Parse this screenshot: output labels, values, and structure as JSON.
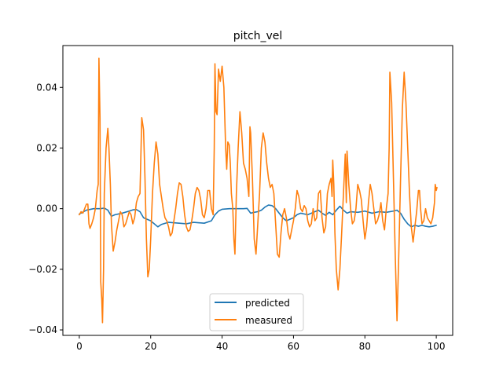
{
  "chart_data": {
    "type": "line",
    "title": "pitch_vel",
    "xlabel": "",
    "ylabel": "",
    "xlim": [
      -4.6,
      104.6
    ],
    "ylim": [
      -0.0418,
      0.0538
    ],
    "xticks": [
      0,
      20,
      40,
      60,
      80,
      100
    ],
    "yticks": [
      -0.04,
      -0.02,
      0.0,
      0.02,
      0.04
    ],
    "xtick_labels": [
      "0",
      "20",
      "40",
      "60",
      "80",
      "100"
    ],
    "ytick_labels": [
      "−0.04",
      "−0.02",
      "0.00",
      "0.02",
      "0.04"
    ],
    "grid": false,
    "legend": {
      "position": "lower center"
    },
    "series": [
      {
        "name": "predicted",
        "color": "#1f77b4",
        "points": [
          [
            0,
            -0.0018
          ],
          [
            2,
            -0.0005
          ],
          [
            4,
            0.0
          ],
          [
            6,
            0.0
          ],
          [
            7,
            0.0002
          ],
          [
            8,
            -0.0005
          ],
          [
            9,
            -0.0025
          ],
          [
            10,
            -0.002
          ],
          [
            12,
            -0.0015
          ],
          [
            14,
            -0.0008
          ],
          [
            15,
            -0.0004
          ],
          [
            16,
            -0.0003
          ],
          [
            17,
            -0.001
          ],
          [
            18,
            -0.003
          ],
          [
            20,
            -0.004
          ],
          [
            22,
            -0.006
          ],
          [
            23,
            -0.0052
          ],
          [
            25,
            -0.0045
          ],
          [
            28,
            -0.0048
          ],
          [
            30,
            -0.005
          ],
          [
            32,
            -0.0045
          ],
          [
            35,
            -0.0048
          ],
          [
            37,
            -0.004
          ],
          [
            38,
            -0.002
          ],
          [
            39,
            -0.0008
          ],
          [
            40,
            -0.0002
          ],
          [
            42,
            0.0
          ],
          [
            44,
            0.0
          ],
          [
            46,
            0.0
          ],
          [
            47,
            0.0001
          ],
          [
            48,
            -0.0015
          ],
          [
            49,
            -0.0012
          ],
          [
            50,
            -0.001
          ],
          [
            51,
            -0.0005
          ],
          [
            52,
            0.0005
          ],
          [
            53,
            0.0012
          ],
          [
            54,
            0.001
          ],
          [
            55,
            0.0
          ],
          [
            56,
            -0.0015
          ],
          [
            57,
            -0.003
          ],
          [
            58,
            -0.004
          ],
          [
            60,
            -0.003
          ],
          [
            61,
            -0.002
          ],
          [
            62,
            -0.0015
          ],
          [
            64,
            -0.002
          ],
          [
            65,
            -0.0015
          ],
          [
            66,
            -0.001
          ],
          [
            67,
            -0.0005
          ],
          [
            68,
            -0.0015
          ],
          [
            69,
            -0.0022
          ],
          [
            70,
            -0.0012
          ],
          [
            71,
            -0.002
          ],
          [
            72,
            -0.0005
          ],
          [
            73,
            0.0008
          ],
          [
            74,
            -0.0005
          ],
          [
            75,
            -0.0015
          ],
          [
            76,
            -0.001
          ],
          [
            78,
            -0.0012
          ],
          [
            80,
            -0.0008
          ],
          [
            82,
            -0.0015
          ],
          [
            84,
            -0.001
          ],
          [
            86,
            -0.0012
          ],
          [
            88,
            -0.0008
          ],
          [
            89,
            -0.0005
          ],
          [
            90,
            -0.0015
          ],
          [
            91,
            -0.0035
          ],
          [
            92,
            -0.005
          ],
          [
            93,
            -0.006
          ],
          [
            94,
            -0.0055
          ],
          [
            95,
            -0.0058
          ],
          [
            96,
            -0.0055
          ],
          [
            97,
            -0.0058
          ],
          [
            98,
            -0.006
          ],
          [
            99,
            -0.0058
          ],
          [
            100,
            -0.0055
          ]
        ]
      },
      {
        "name": "measured",
        "color": "#ff7f0e",
        "points": [
          [
            0,
            -0.002
          ],
          [
            0.5,
            -0.001
          ],
          [
            1,
            -0.0015
          ],
          [
            1.5,
            0.0
          ],
          [
            2,
            0.0015
          ],
          [
            2.4,
            0.0015
          ],
          [
            2.7,
            -0.005
          ],
          [
            3,
            -0.0065
          ],
          [
            3.5,
            -0.005
          ],
          [
            4,
            -0.003
          ],
          [
            4.5,
            0.0
          ],
          [
            5,
            0.006
          ],
          [
            5.3,
            0.008
          ],
          [
            5.5,
            0.0496
          ],
          [
            5.8,
            0.03
          ],
          [
            6,
            -0.024
          ],
          [
            6.3,
            -0.03
          ],
          [
            6.5,
            -0.0376
          ],
          [
            6.8,
            -0.02
          ],
          [
            7,
            0.005
          ],
          [
            7.5,
            0.02
          ],
          [
            8,
            0.0265
          ],
          [
            8.3,
            0.02
          ],
          [
            8.7,
            0.008
          ],
          [
            9,
            -0.005
          ],
          [
            9.5,
            -0.014
          ],
          [
            10,
            -0.011
          ],
          [
            10.5,
            -0.007
          ],
          [
            11,
            -0.004
          ],
          [
            11.5,
            -0.001
          ],
          [
            12,
            -0.002
          ],
          [
            12.5,
            -0.006
          ],
          [
            13,
            -0.005
          ],
          [
            13.5,
            -0.003
          ],
          [
            14,
            -0.001
          ],
          [
            14.5,
            -0.002
          ],
          [
            15,
            -0.005
          ],
          [
            15.5,
            -0.003
          ],
          [
            16,
            0.002
          ],
          [
            16.5,
            0.004
          ],
          [
            17,
            0.005
          ],
          [
            17.5,
            0.03
          ],
          [
            18,
            0.026
          ],
          [
            18.4,
            0.01
          ],
          [
            18.8,
            -0.01
          ],
          [
            19.2,
            -0.0225
          ],
          [
            19.6,
            -0.02
          ],
          [
            20,
            -0.01
          ],
          [
            20.5,
            0.005
          ],
          [
            21,
            0.015
          ],
          [
            21.5,
            0.022
          ],
          [
            22,
            0.018
          ],
          [
            22.5,
            0.008
          ],
          [
            23,
            0.004
          ],
          [
            23.5,
            0.0
          ],
          [
            24,
            -0.003
          ],
          [
            24.5,
            -0.004
          ],
          [
            25,
            -0.006
          ],
          [
            25.5,
            -0.009
          ],
          [
            26,
            -0.008
          ],
          [
            26.5,
            -0.004
          ],
          [
            27,
            0.0
          ],
          [
            27.5,
            0.005
          ],
          [
            28,
            0.0085
          ],
          [
            28.5,
            0.008
          ],
          [
            29,
            0.004
          ],
          [
            29.5,
            -0.002
          ],
          [
            30,
            -0.006
          ],
          [
            30.5,
            -0.0075
          ],
          [
            31,
            -0.007
          ],
          [
            31.5,
            -0.004
          ],
          [
            32,
            0.0
          ],
          [
            32.5,
            0.005
          ],
          [
            33,
            0.007
          ],
          [
            33.5,
            0.006
          ],
          [
            34,
            0.003
          ],
          [
            34.5,
            -0.002
          ],
          [
            35,
            -0.003
          ],
          [
            35.5,
            0.0
          ],
          [
            36,
            0.006
          ],
          [
            36.5,
            0.006
          ],
          [
            37,
            0.0
          ],
          [
            37.5,
            -0.002
          ],
          [
            37.8,
            0.02
          ],
          [
            38,
            0.0478
          ],
          [
            38.3,
            0.032
          ],
          [
            38.6,
            0.031
          ],
          [
            39,
            0.046
          ],
          [
            39.5,
            0.042
          ],
          [
            40,
            0.047
          ],
          [
            40.5,
            0.04
          ],
          [
            41,
            0.02
          ],
          [
            41.3,
            0.013
          ],
          [
            41.6,
            0.022
          ],
          [
            42,
            0.021
          ],
          [
            42.3,
            0.015
          ],
          [
            42.6,
            0.005
          ],
          [
            43,
            0.0
          ],
          [
            43.3,
            -0.01
          ],
          [
            43.6,
            -0.015
          ],
          [
            44,
            0.005
          ],
          [
            44.5,
            0.02
          ],
          [
            45,
            0.032
          ],
          [
            45.5,
            0.025
          ],
          [
            46,
            0.015
          ],
          [
            46.5,
            0.013
          ],
          [
            47,
            0.01
          ],
          [
            47.5,
            0.004
          ],
          [
            47.8,
            0.027
          ],
          [
            48,
            0.025
          ],
          [
            48.5,
            0.01
          ],
          [
            49,
            -0.01
          ],
          [
            49.5,
            -0.015
          ],
          [
            50,
            -0.005
          ],
          [
            50.5,
            0.005
          ],
          [
            51,
            0.02
          ],
          [
            51.5,
            0.025
          ],
          [
            52,
            0.022
          ],
          [
            52.5,
            0.015
          ],
          [
            53,
            0.01
          ],
          [
            53.5,
            0.007
          ],
          [
            54,
            0.008
          ],
          [
            54.5,
            0.005
          ],
          [
            55,
            -0.005
          ],
          [
            55.5,
            -0.015
          ],
          [
            56,
            -0.016
          ],
          [
            56.5,
            -0.008
          ],
          [
            57,
            -0.002
          ],
          [
            57.5,
            0.0
          ],
          [
            58,
            -0.003
          ],
          [
            58.5,
            -0.008
          ],
          [
            59,
            -0.01
          ],
          [
            59.5,
            -0.007
          ],
          [
            60,
            -0.004
          ],
          [
            60.5,
            0.0
          ],
          [
            61,
            0.006
          ],
          [
            61.5,
            0.004
          ],
          [
            62,
            0.0
          ],
          [
            62.5,
            -0.001
          ],
          [
            63,
            0.001
          ],
          [
            63.5,
            0.0
          ],
          [
            64,
            -0.004
          ],
          [
            64.5,
            -0.006
          ],
          [
            65,
            -0.005
          ],
          [
            65.5,
            0.0
          ],
          [
            66,
            -0.004
          ],
          [
            66.5,
            -0.003
          ],
          [
            67,
            0.005
          ],
          [
            67.5,
            0.006
          ],
          [
            68,
            -0.003
          ],
          [
            68.5,
            -0.008
          ],
          [
            69,
            -0.006
          ],
          [
            69.5,
            0.005
          ],
          [
            70,
            0.008
          ],
          [
            70.5,
            0.01
          ],
          [
            70.8,
            0.004
          ],
          [
            71,
            0.016
          ],
          [
            71.3,
            0.008
          ],
          [
            71.6,
            -0.008
          ],
          [
            72,
            -0.02
          ],
          [
            72.5,
            -0.0268
          ],
          [
            73,
            -0.02
          ],
          [
            73.5,
            -0.008
          ],
          [
            74,
            0.005
          ],
          [
            74.5,
            0.018
          ],
          [
            74.8,
            0.002
          ],
          [
            75,
            0.019
          ],
          [
            75.5,
            0.008
          ],
          [
            76,
            0.0
          ],
          [
            76.5,
            -0.005
          ],
          [
            77,
            -0.004
          ],
          [
            77.5,
            0.0
          ],
          [
            78,
            0.008
          ],
          [
            78.5,
            0.006
          ],
          [
            79,
            0.003
          ],
          [
            79.5,
            -0.004
          ],
          [
            80,
            -0.01
          ],
          [
            80.5,
            -0.006
          ],
          [
            81,
            0.002
          ],
          [
            81.5,
            0.008
          ],
          [
            82,
            0.005
          ],
          [
            82.5,
            0.0
          ],
          [
            83,
            -0.005
          ],
          [
            83.5,
            -0.004
          ],
          [
            84,
            -0.002
          ],
          [
            84.5,
            0.002
          ],
          [
            85,
            -0.004
          ],
          [
            85.5,
            -0.007
          ],
          [
            86,
            0.0
          ],
          [
            86.5,
            0.005
          ],
          [
            86.8,
            0.02
          ],
          [
            87,
            0.045
          ],
          [
            87.5,
            0.035
          ],
          [
            88,
            0.01
          ],
          [
            88.5,
            -0.015
          ],
          [
            89,
            -0.037
          ],
          [
            89.5,
            -0.015
          ],
          [
            90,
            0.01
          ],
          [
            90.5,
            0.033
          ],
          [
            91,
            0.045
          ],
          [
            91.5,
            0.035
          ],
          [
            92,
            0.02
          ],
          [
            92.5,
            0.005
          ],
          [
            93,
            -0.006
          ],
          [
            93.5,
            -0.011
          ],
          [
            94,
            -0.006
          ],
          [
            94.5,
            -0.001
          ],
          [
            95,
            0.006
          ],
          [
            95.3,
            0.006
          ],
          [
            95.6,
            0.0
          ],
          [
            96,
            -0.005
          ],
          [
            96.5,
            -0.004
          ],
          [
            97,
            0.0
          ],
          [
            97.5,
            -0.003
          ],
          [
            98,
            -0.004
          ],
          [
            98.5,
            -0.005
          ],
          [
            99,
            -0.003
          ],
          [
            99.5,
            0.002
          ],
          [
            99.7,
            0.008
          ],
          [
            100,
            0.006
          ],
          [
            100.2,
            0.007
          ]
        ]
      }
    ]
  }
}
